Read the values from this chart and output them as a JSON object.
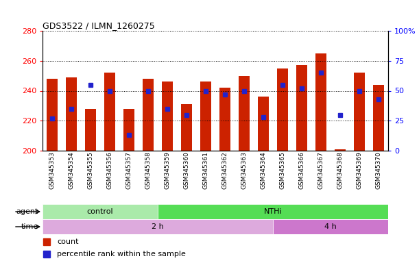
{
  "title": "GDS3522 / ILMN_1260275",
  "samples": [
    "GSM345353",
    "GSM345354",
    "GSM345355",
    "GSM345356",
    "GSM345357",
    "GSM345358",
    "GSM345359",
    "GSM345360",
    "GSM345361",
    "GSM345362",
    "GSM345363",
    "GSM345364",
    "GSM345365",
    "GSM345366",
    "GSM345367",
    "GSM345368",
    "GSM345369",
    "GSM345370"
  ],
  "bar_heights": [
    248,
    249,
    228,
    252,
    228,
    248,
    246,
    231,
    246,
    242,
    250,
    236,
    255,
    257,
    265,
    201,
    252,
    244
  ],
  "blue_dot_values": [
    27,
    35,
    55,
    50,
    13,
    50,
    35,
    30,
    50,
    47,
    50,
    28,
    55,
    52,
    65,
    30,
    50,
    43
  ],
  "ylim_left": [
    200,
    280
  ],
  "ylim_right": [
    0,
    100
  ],
  "yticks_left": [
    200,
    220,
    240,
    260,
    280
  ],
  "yticks_right": [
    0,
    25,
    50,
    75,
    100
  ],
  "bar_color": "#cc2200",
  "dot_color": "#2222cc",
  "agent_groups": [
    {
      "label": "control",
      "start": 0,
      "end": 6,
      "color": "#aaeaaa"
    },
    {
      "label": "NTHi",
      "start": 6,
      "end": 18,
      "color": "#55dd55"
    }
  ],
  "time_groups": [
    {
      "label": "2 h",
      "start": 0,
      "end": 12,
      "color": "#ddaadd"
    },
    {
      "label": "4 h",
      "start": 12,
      "end": 18,
      "color": "#cc77cc"
    }
  ],
  "legend_count_label": "count",
  "legend_pct_label": "percentile rank within the sample",
  "bar_width": 0.55
}
